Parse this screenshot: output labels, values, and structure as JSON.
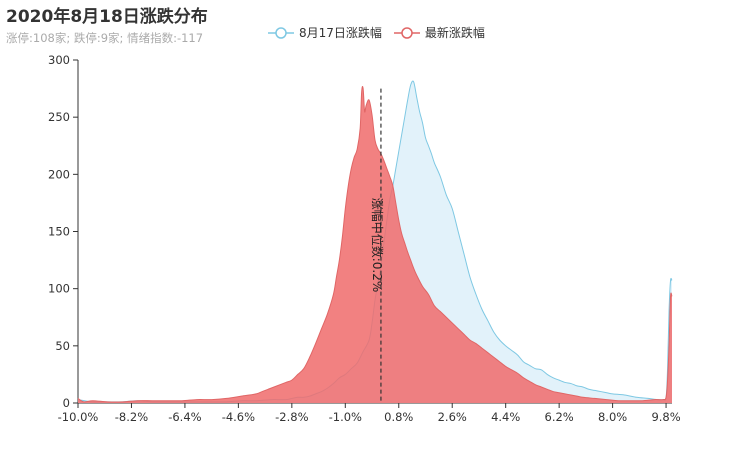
{
  "header": {
    "title": "2020年8月18日涨跌分布",
    "subtitle": "涨停:108家; 跌停:9家; 情绪指数:-117"
  },
  "chart_data": {
    "type": "area",
    "title": "2020年8月18日涨跌分布",
    "subtitle": "涨停:108家; 跌停:9家; 情绪指数:-117",
    "x_range": [
      -10.0,
      10.0
    ],
    "x_ticks": [
      "-10.0%",
      "-8.2%",
      "-6.4%",
      "-4.6%",
      "-2.8%",
      "-1.0%",
      "0.8%",
      "2.6%",
      "4.4%",
      "6.2%",
      "8.0%",
      "9.8%"
    ],
    "y_ticks": [
      0,
      50,
      100,
      150,
      200,
      250,
      300
    ],
    "ylim": [
      0,
      300
    ],
    "legend": {
      "position": "top-center"
    },
    "median": {
      "x": 0.2,
      "label": "涨幅中位数:0.2%"
    },
    "series": [
      {
        "name": "8月17日涨跌幅",
        "color": "#7ec8e3",
        "fill": "#dff1fa",
        "points": [
          [
            -10.0,
            3
          ],
          [
            -9.5,
            1
          ],
          [
            -9.0,
            1
          ],
          [
            -8.5,
            1
          ],
          [
            -8.0,
            2
          ],
          [
            -7.5,
            1
          ],
          [
            -7.0,
            1
          ],
          [
            -6.5,
            1
          ],
          [
            -6.0,
            1
          ],
          [
            -5.5,
            1
          ],
          [
            -5.0,
            1
          ],
          [
            -4.5,
            2
          ],
          [
            -4.0,
            2
          ],
          [
            -3.5,
            3
          ],
          [
            -3.0,
            3
          ],
          [
            -2.8,
            4
          ],
          [
            -2.6,
            5
          ],
          [
            -2.4,
            5
          ],
          [
            -2.2,
            6
          ],
          [
            -2.0,
            8
          ],
          [
            -1.8,
            10
          ],
          [
            -1.6,
            13
          ],
          [
            -1.4,
            17
          ],
          [
            -1.2,
            22
          ],
          [
            -1.0,
            25
          ],
          [
            -0.8,
            30
          ],
          [
            -0.6,
            35
          ],
          [
            -0.4,
            45
          ],
          [
            -0.2,
            55
          ],
          [
            -0.1,
            70
          ],
          [
            0.0,
            90
          ],
          [
            0.1,
            105
          ],
          [
            0.2,
            120
          ],
          [
            0.3,
            140
          ],
          [
            0.4,
            160
          ],
          [
            0.5,
            178
          ],
          [
            0.6,
            190
          ],
          [
            0.7,
            205
          ],
          [
            0.8,
            220
          ],
          [
            0.9,
            235
          ],
          [
            1.0,
            250
          ],
          [
            1.1,
            265
          ],
          [
            1.2,
            278
          ],
          [
            1.3,
            281
          ],
          [
            1.4,
            268
          ],
          [
            1.5,
            255
          ],
          [
            1.6,
            245
          ],
          [
            1.7,
            232
          ],
          [
            1.8,
            225
          ],
          [
            1.9,
            218
          ],
          [
            2.0,
            210
          ],
          [
            2.2,
            198
          ],
          [
            2.4,
            182
          ],
          [
            2.6,
            170
          ],
          [
            2.8,
            150
          ],
          [
            3.0,
            130
          ],
          [
            3.2,
            110
          ],
          [
            3.4,
            95
          ],
          [
            3.6,
            82
          ],
          [
            3.8,
            72
          ],
          [
            4.0,
            62
          ],
          [
            4.2,
            55
          ],
          [
            4.4,
            50
          ],
          [
            4.6,
            46
          ],
          [
            4.8,
            42
          ],
          [
            5.0,
            36
          ],
          [
            5.2,
            33
          ],
          [
            5.4,
            30
          ],
          [
            5.6,
            29
          ],
          [
            5.8,
            25
          ],
          [
            6.0,
            22
          ],
          [
            6.2,
            20
          ],
          [
            6.4,
            18
          ],
          [
            6.6,
            17
          ],
          [
            6.8,
            15
          ],
          [
            7.0,
            14
          ],
          [
            7.2,
            12
          ],
          [
            7.4,
            11
          ],
          [
            7.6,
            10
          ],
          [
            7.8,
            9
          ],
          [
            8.0,
            8
          ],
          [
            8.4,
            7
          ],
          [
            8.8,
            5
          ],
          [
            9.2,
            4
          ],
          [
            9.5,
            3
          ],
          [
            9.7,
            3
          ],
          [
            9.8,
            5
          ],
          [
            9.85,
            30
          ],
          [
            9.9,
            80
          ],
          [
            9.95,
            107
          ],
          [
            10.0,
            107
          ]
        ]
      },
      {
        "name": "最新涨跌幅",
        "color": "#e06666",
        "fill": "#f06b6b",
        "points": [
          [
            -10.0,
            4
          ],
          [
            -9.8,
            1
          ],
          [
            -9.5,
            2
          ],
          [
            -9.0,
            1
          ],
          [
            -8.5,
            1
          ],
          [
            -8.0,
            2
          ],
          [
            -7.5,
            2
          ],
          [
            -7.0,
            2
          ],
          [
            -6.5,
            2
          ],
          [
            -6.0,
            3
          ],
          [
            -5.5,
            3
          ],
          [
            -5.0,
            4
          ],
          [
            -4.5,
            6
          ],
          [
            -4.0,
            8
          ],
          [
            -3.8,
            10
          ],
          [
            -3.6,
            12
          ],
          [
            -3.4,
            14
          ],
          [
            -3.2,
            16
          ],
          [
            -3.0,
            18
          ],
          [
            -2.8,
            20
          ],
          [
            -2.6,
            25
          ],
          [
            -2.4,
            30
          ],
          [
            -2.2,
            40
          ],
          [
            -2.0,
            52
          ],
          [
            -1.8,
            65
          ],
          [
            -1.6,
            78
          ],
          [
            -1.4,
            95
          ],
          [
            -1.3,
            110
          ],
          [
            -1.2,
            125
          ],
          [
            -1.1,
            145
          ],
          [
            -1.0,
            170
          ],
          [
            -0.9,
            190
          ],
          [
            -0.8,
            205
          ],
          [
            -0.7,
            215
          ],
          [
            -0.6,
            222
          ],
          [
            -0.5,
            240
          ],
          [
            -0.45,
            272
          ],
          [
            -0.4,
            275
          ],
          [
            -0.35,
            255
          ],
          [
            -0.3,
            260
          ],
          [
            -0.2,
            265
          ],
          [
            -0.1,
            252
          ],
          [
            0.0,
            230
          ],
          [
            0.1,
            222
          ],
          [
            0.2,
            218
          ],
          [
            0.3,
            212
          ],
          [
            0.4,
            205
          ],
          [
            0.5,
            198
          ],
          [
            0.6,
            190
          ],
          [
            0.7,
            175
          ],
          [
            0.8,
            160
          ],
          [
            0.9,
            148
          ],
          [
            1.0,
            140
          ],
          [
            1.1,
            132
          ],
          [
            1.2,
            125
          ],
          [
            1.3,
            118
          ],
          [
            1.4,
            112
          ],
          [
            1.6,
            102
          ],
          [
            1.8,
            95
          ],
          [
            2.0,
            85
          ],
          [
            2.2,
            80
          ],
          [
            2.4,
            75
          ],
          [
            2.6,
            70
          ],
          [
            2.8,
            65
          ],
          [
            3.0,
            60
          ],
          [
            3.2,
            55
          ],
          [
            3.4,
            52
          ],
          [
            3.6,
            48
          ],
          [
            3.8,
            44
          ],
          [
            4.0,
            40
          ],
          [
            4.2,
            36
          ],
          [
            4.4,
            32
          ],
          [
            4.6,
            29
          ],
          [
            4.8,
            26
          ],
          [
            5.0,
            22
          ],
          [
            5.2,
            19
          ],
          [
            5.4,
            16
          ],
          [
            5.6,
            14
          ],
          [
            5.8,
            12
          ],
          [
            6.0,
            10
          ],
          [
            6.2,
            9
          ],
          [
            6.4,
            8
          ],
          [
            6.6,
            7
          ],
          [
            6.8,
            6
          ],
          [
            7.0,
            5
          ],
          [
            7.4,
            4
          ],
          [
            7.8,
            3
          ],
          [
            8.2,
            2
          ],
          [
            8.6,
            2
          ],
          [
            9.0,
            2
          ],
          [
            9.4,
            3
          ],
          [
            9.7,
            3
          ],
          [
            9.8,
            5
          ],
          [
            9.85,
            20
          ],
          [
            9.9,
            50
          ],
          [
            9.95,
            93
          ],
          [
            10.0,
            93
          ]
        ]
      }
    ]
  }
}
